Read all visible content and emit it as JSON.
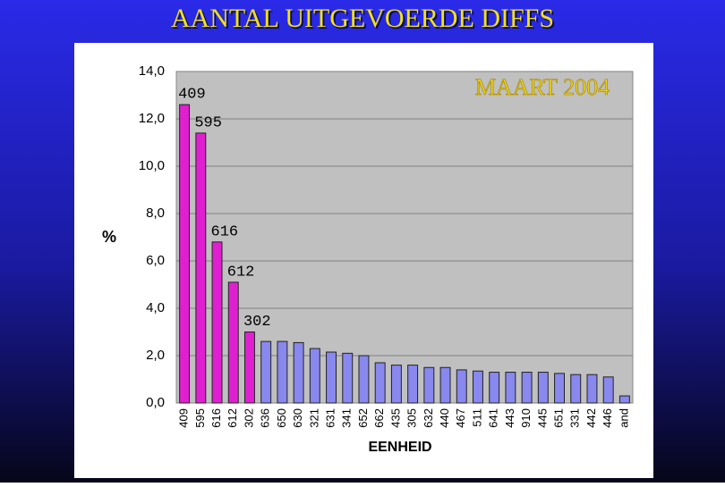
{
  "chart_data": {
    "type": "bar",
    "title": "AANTAL UITGEVOERDE DIFFS",
    "subtitle": "MAART 2004",
    "y_label": "%",
    "x_label": "EENHEID",
    "categories": [
      "409",
      "595",
      "616",
      "612",
      "302",
      "636",
      "650",
      "630",
      "321",
      "631",
      "341",
      "652",
      "662",
      "435",
      "305",
      "632",
      "440",
      "467",
      "511",
      "641",
      "443",
      "910",
      "445",
      "651",
      "331",
      "442",
      "446",
      "and"
    ],
    "values": [
      12.6,
      11.4,
      6.8,
      5.1,
      3.0,
      2.6,
      2.6,
      2.55,
      2.3,
      2.15,
      2.1,
      2.0,
      1.7,
      1.6,
      1.6,
      1.5,
      1.5,
      1.4,
      1.35,
      1.3,
      1.3,
      1.3,
      1.3,
      1.25,
      1.2,
      1.2,
      1.1,
      0.3
    ],
    "colors": [
      "#e020d0",
      "#e020d0",
      "#e020d0",
      "#e020d0",
      "#e020d0",
      "#8888ee",
      "#8888ee",
      "#8888ee",
      "#8888ee",
      "#8888ee",
      "#8888ee",
      "#8888ee",
      "#8888ee",
      "#8888ee",
      "#8888ee",
      "#8888ee",
      "#8888ee",
      "#8888ee",
      "#8888ee",
      "#8888ee",
      "#8888ee",
      "#8888ee",
      "#8888ee",
      "#8888ee",
      "#8888ee",
      "#8888ee",
      "#8888ee",
      "#8888ee"
    ],
    "annotations": [
      "409",
      "595",
      "616",
      "612",
      "302"
    ],
    "ylim": [
      0,
      14
    ],
    "yticks": [
      {
        "value": 0,
        "label": "0,0"
      },
      {
        "value": 2,
        "label": "2,0"
      },
      {
        "value": 4,
        "label": "4,0"
      },
      {
        "value": 6,
        "label": "6,0"
      },
      {
        "value": 8,
        "label": "8,0"
      },
      {
        "value": 10,
        "label": "10,0"
      },
      {
        "value": 12,
        "label": "12,0"
      },
      {
        "value": 14,
        "label": "14,0"
      }
    ],
    "grid": true
  }
}
